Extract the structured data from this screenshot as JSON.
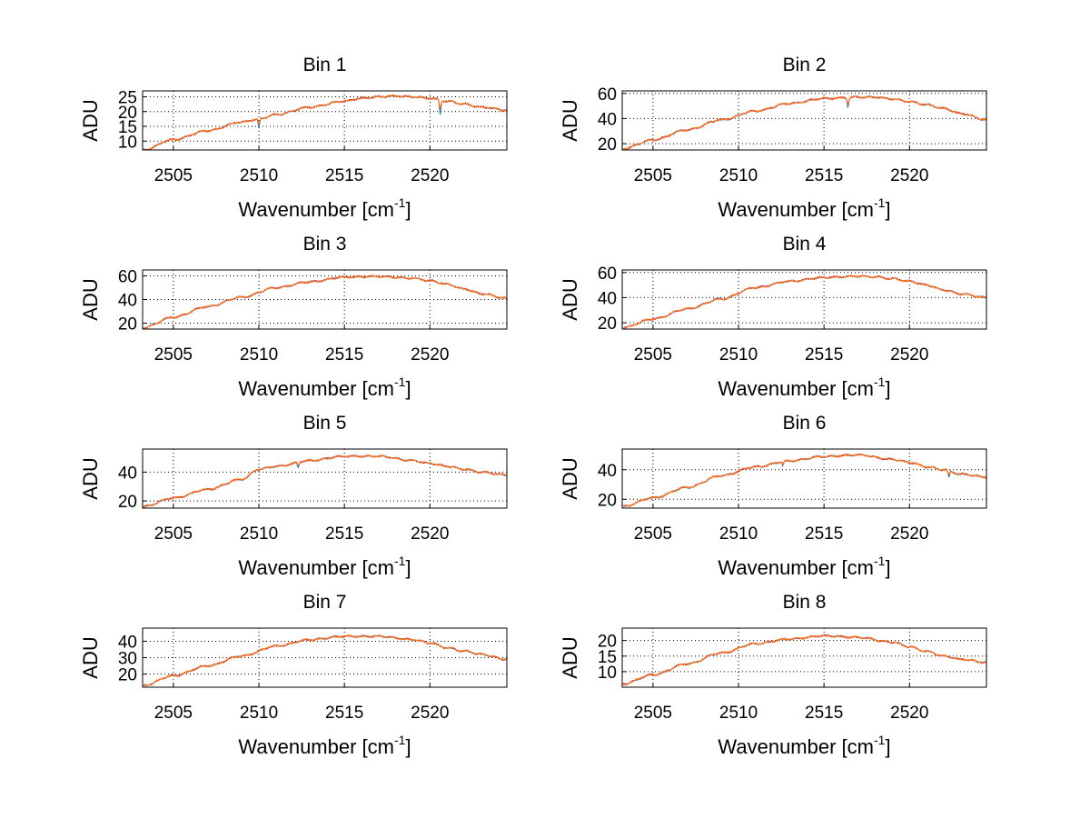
{
  "chart_data": [
    {
      "type": "line",
      "title": "Bin 1",
      "xlabel": "Wavenumber [cm",
      "xlabel_sup": "-1",
      "xlabel_end": "]",
      "ylabel": "ADU",
      "xlim": [
        2503.2,
        2524.5
      ],
      "ylim": [
        7,
        27
      ],
      "xticks": [
        2505,
        2510,
        2515,
        2520
      ],
      "yticks": [
        10,
        15,
        20,
        25
      ],
      "grid": true,
      "series": [
        {
          "color": "#1f77b4"
        },
        {
          "color": "#e6194b"
        },
        {
          "color": "#ff7f0e"
        }
      ],
      "x": [
        2503.2,
        2505,
        2507,
        2509,
        2510,
        2511,
        2513,
        2515,
        2516,
        2517,
        2518,
        2519,
        2520,
        2521,
        2522,
        2523,
        2524.5
      ],
      "y": [
        7,
        10.5,
        13.5,
        16.5,
        17.5,
        19,
        21.5,
        23.5,
        24.5,
        25,
        25.3,
        25,
        24.5,
        23.5,
        22.5,
        21.5,
        20.5
      ],
      "dips": [
        [
          2510,
          -3
        ],
        [
          2520.6,
          -5
        ]
      ]
    },
    {
      "type": "line",
      "title": "Bin 2",
      "xlabel": "Wavenumber [cm",
      "xlabel_sup": "-1",
      "xlabel_end": "]",
      "ylabel": "ADU",
      "xlim": [
        2503.2,
        2524.5
      ],
      "ylim": [
        15,
        62
      ],
      "xticks": [
        2505,
        2510,
        2515,
        2520
      ],
      "yticks": [
        20,
        40,
        60
      ],
      "grid": true,
      "series": [
        {
          "color": "#1f77b4"
        },
        {
          "color": "#e6194b"
        },
        {
          "color": "#ff7f0e"
        }
      ],
      "x": [
        2503.2,
        2505,
        2507,
        2509,
        2511,
        2513,
        2515,
        2517,
        2518,
        2519,
        2520,
        2521,
        2522,
        2523,
        2524.5
      ],
      "y": [
        16,
        23,
        31,
        39,
        46,
        52,
        56,
        57,
        57,
        55.5,
        53.5,
        51,
        48,
        44,
        39
      ],
      "dips": [
        [
          2516.4,
          -8
        ]
      ]
    },
    {
      "type": "line",
      "title": "Bin 3",
      "xlabel": "Wavenumber [cm",
      "xlabel_sup": "-1",
      "xlabel_end": "]",
      "ylabel": "ADU",
      "xlim": [
        2503.2,
        2524.5
      ],
      "ylim": [
        15,
        65
      ],
      "xticks": [
        2505,
        2510,
        2515,
        2520
      ],
      "yticks": [
        20,
        40,
        60
      ],
      "grid": true,
      "series": [
        {
          "color": "#1f77b4"
        },
        {
          "color": "#e6194b"
        },
        {
          "color": "#ff7f0e"
        }
      ],
      "x": [
        2503.2,
        2505,
        2507,
        2509,
        2511,
        2513,
        2515,
        2517,
        2519,
        2520,
        2521,
        2522,
        2523,
        2524.5
      ],
      "y": [
        16,
        25,
        34,
        42,
        50,
        55,
        59,
        59.5,
        58,
        56,
        53,
        49,
        45,
        41
      ],
      "dips": []
    },
    {
      "type": "line",
      "title": "Bin 4",
      "xlabel": "Wavenumber [cm",
      "xlabel_sup": "-1",
      "xlabel_end": "]",
      "ylabel": "ADU",
      "xlim": [
        2503.2,
        2524.5
      ],
      "ylim": [
        15,
        62
      ],
      "xticks": [
        2505,
        2510,
        2515,
        2520
      ],
      "yticks": [
        20,
        40,
        60
      ],
      "grid": true,
      "series": [
        {
          "color": "#1f77b4"
        },
        {
          "color": "#e6194b"
        },
        {
          "color": "#ff7f0e"
        }
      ],
      "x": [
        2503.2,
        2505,
        2507,
        2509,
        2511,
        2513,
        2515,
        2517,
        2518,
        2519,
        2520,
        2521,
        2522,
        2523,
        2524.5
      ],
      "y": [
        16,
        23,
        31,
        39,
        48,
        53,
        56,
        57,
        56.5,
        55,
        53,
        50,
        46,
        43,
        40
      ],
      "dips": []
    },
    {
      "type": "line",
      "title": "Bin 5",
      "xlabel": "Wavenumber [cm",
      "xlabel_sup": "-1",
      "xlabel_end": "]",
      "ylabel": "ADU",
      "xlim": [
        2503.2,
        2524.5
      ],
      "ylim": [
        15,
        56
      ],
      "xticks": [
        2505,
        2510,
        2515,
        2520
      ],
      "yticks": [
        20,
        40
      ],
      "grid": true,
      "series": [
        {
          "color": "#1f77b4"
        },
        {
          "color": "#e6194b"
        },
        {
          "color": "#ff7f0e"
        }
      ],
      "x": [
        2503.2,
        2505,
        2507,
        2509,
        2510,
        2511,
        2513,
        2515,
        2517,
        2519,
        2520,
        2521,
        2522,
        2523,
        2524.5
      ],
      "y": [
        16,
        22,
        28,
        35,
        42,
        44,
        48,
        51,
        51,
        48,
        46,
        44,
        42,
        40,
        38
      ],
      "dips": [
        [
          2512.3,
          -4
        ]
      ]
    },
    {
      "type": "line",
      "title": "Bin 6",
      "xlabel": "Wavenumber [cm",
      "xlabel_sup": "-1",
      "xlabel_end": "]",
      "ylabel": "ADU",
      "xlim": [
        2503.2,
        2524.5
      ],
      "ylim": [
        14,
        54
      ],
      "xticks": [
        2505,
        2510,
        2515,
        2520
      ],
      "yticks": [
        20,
        40
      ],
      "grid": true,
      "series": [
        {
          "color": "#1f77b4"
        },
        {
          "color": "#e6194b"
        },
        {
          "color": "#ff7f0e"
        }
      ],
      "x": [
        2503.2,
        2505,
        2507,
        2509,
        2511,
        2513,
        2515,
        2517,
        2519,
        2520,
        2521,
        2522,
        2523,
        2524.5
      ],
      "y": [
        15,
        21,
        28,
        36,
        42,
        46,
        49,
        50,
        47,
        45,
        42,
        40,
        37,
        35
      ],
      "dips": [
        [
          2512.6,
          -3
        ],
        [
          2522.3,
          -5
        ]
      ]
    },
    {
      "type": "line",
      "title": "Bin 7",
      "xlabel": "Wavenumber [cm",
      "xlabel_sup": "-1",
      "xlabel_end": "]",
      "ylabel": "ADU",
      "xlim": [
        2503.2,
        2524.5
      ],
      "ylim": [
        12,
        48
      ],
      "xticks": [
        2505,
        2510,
        2515,
        2520
      ],
      "yticks": [
        20,
        30,
        40
      ],
      "grid": true,
      "series": [
        {
          "color": "#1f77b4"
        },
        {
          "color": "#e6194b"
        },
        {
          "color": "#ff7f0e"
        }
      ],
      "x": [
        2503.2,
        2505,
        2507,
        2509,
        2511,
        2513,
        2515,
        2517,
        2519,
        2520,
        2521,
        2522,
        2523,
        2524.5
      ],
      "y": [
        13,
        19,
        25,
        31,
        37,
        41,
        43,
        43,
        41,
        39,
        36,
        34,
        32,
        29
      ],
      "dips": []
    },
    {
      "type": "line",
      "title": "Bin 8",
      "xlabel": "Wavenumber [cm",
      "xlabel_sup": "-1",
      "xlabel_end": "]",
      "ylabel": "ADU",
      "xlim": [
        2503.2,
        2524.5
      ],
      "ylim": [
        5,
        24
      ],
      "xticks": [
        2505,
        2510,
        2515,
        2520
      ],
      "yticks": [
        10,
        15,
        20
      ],
      "grid": true,
      "series": [
        {
          "color": "#1f77b4"
        },
        {
          "color": "#e6194b"
        },
        {
          "color": "#ff7f0e"
        }
      ],
      "x": [
        2503.2,
        2505,
        2507,
        2509,
        2511,
        2513,
        2515,
        2517,
        2519,
        2520,
        2521,
        2522,
        2523,
        2524.5
      ],
      "y": [
        6,
        9,
        12.5,
        16,
        19,
        20.5,
        21.5,
        21,
        19.5,
        18,
        16.5,
        15,
        14,
        13
      ],
      "dips": []
    }
  ]
}
